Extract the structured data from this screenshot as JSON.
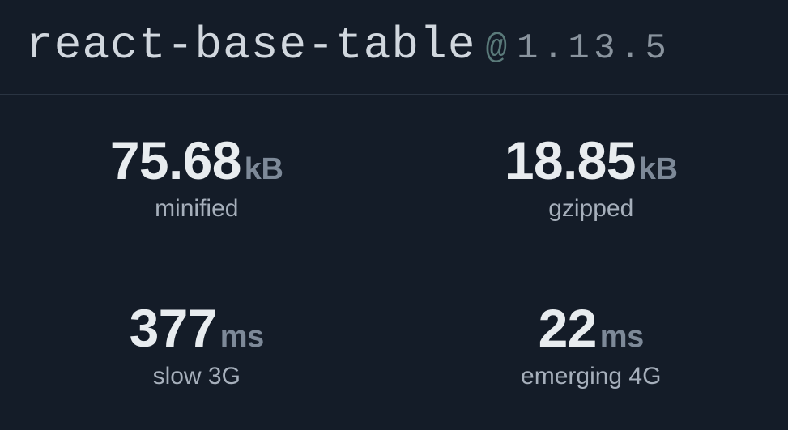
{
  "header": {
    "package_name": "react-base-table",
    "at_symbol": "@",
    "version": "1.13.5"
  },
  "metrics": [
    {
      "value": "75.68",
      "unit": "kB",
      "label": "minified"
    },
    {
      "value": "18.85",
      "unit": "kB",
      "label": "gzipped"
    },
    {
      "value": "377",
      "unit": "ms",
      "label": "slow 3G"
    },
    {
      "value": "22",
      "unit": "ms",
      "label": "emerging 4G"
    }
  ],
  "style": {
    "background_color": "#141c28",
    "border_color": "#2a3442",
    "pkg_name_color": "#d1d7de",
    "at_symbol_color": "#5a7a7a",
    "version_color": "#8a949e",
    "value_color": "#e8ecef",
    "unit_color": "#7d8998",
    "label_color": "#a6afbb",
    "pkg_name_fontsize": 56,
    "version_fontsize": 44,
    "value_fontsize": 66,
    "unit_fontsize": 38,
    "label_fontsize": 30
  }
}
